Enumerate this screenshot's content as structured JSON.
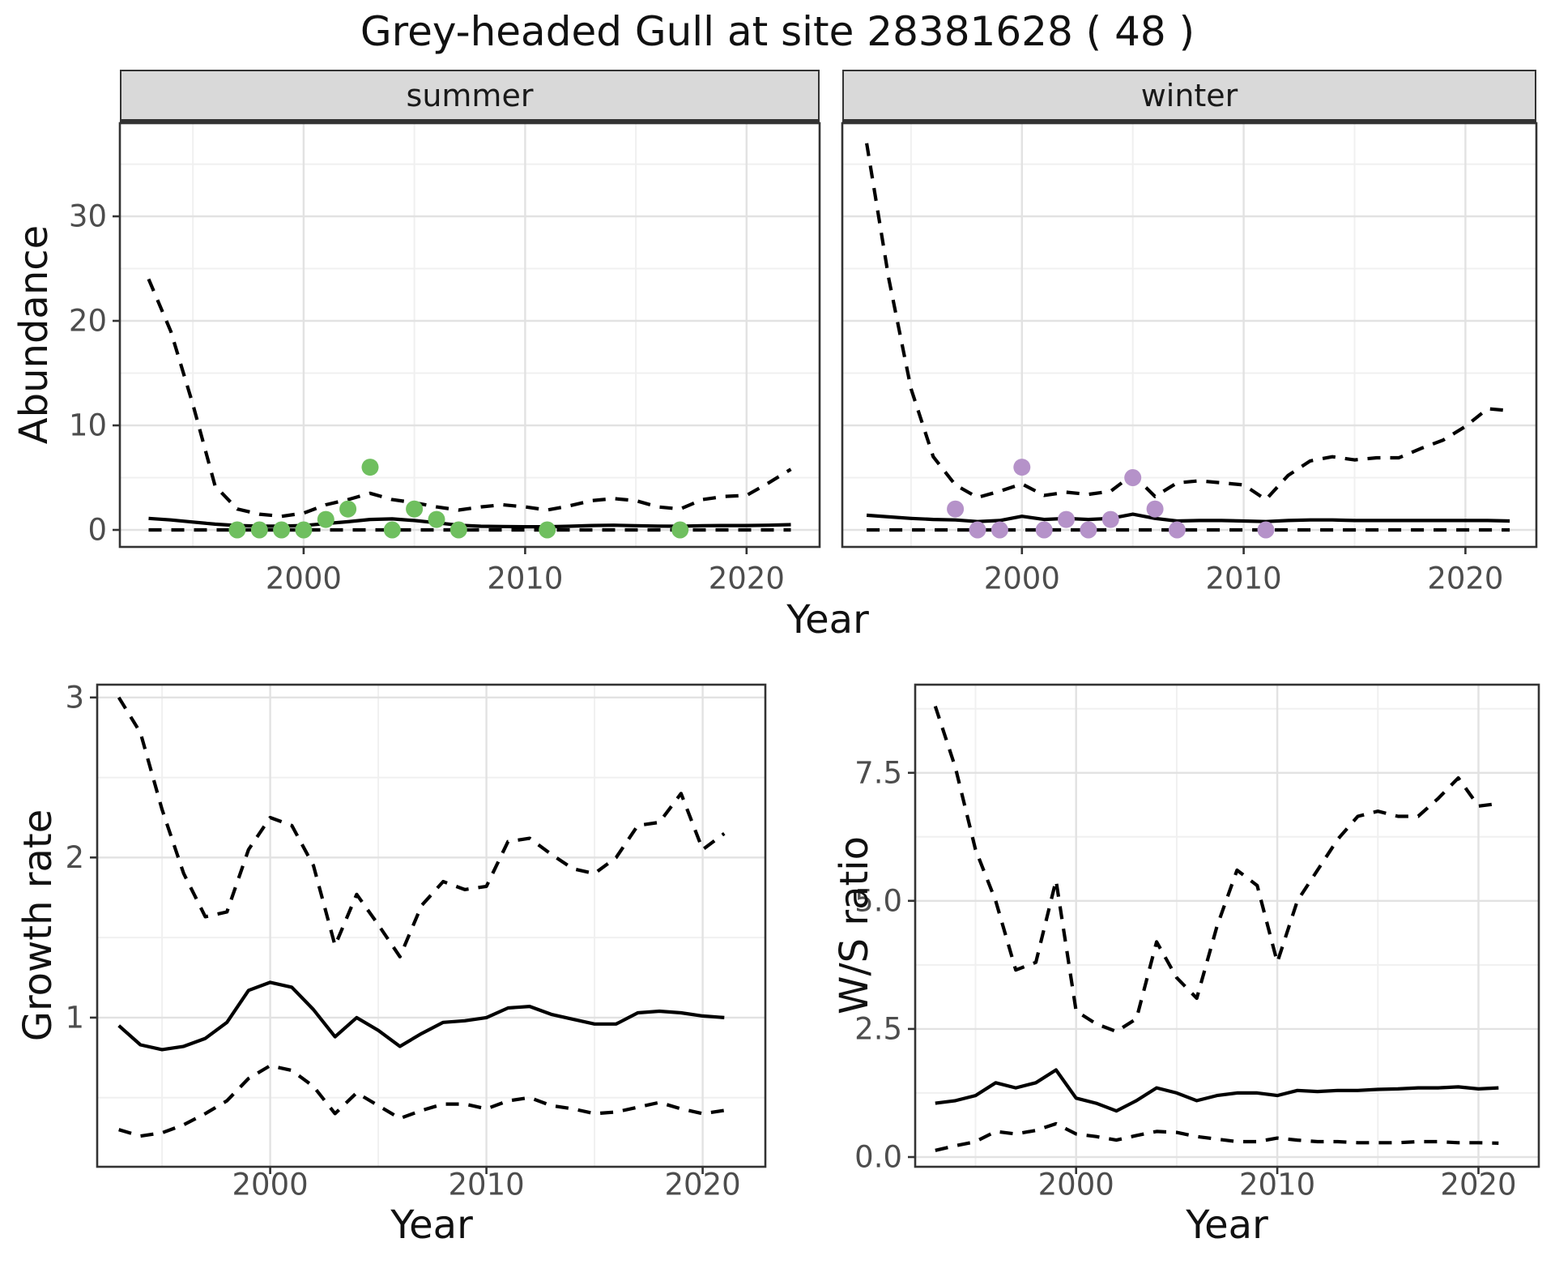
{
  "title": "Grey-headed Gull at site 28381628 ( 48 )",
  "facets": [
    {
      "label": "summer"
    },
    {
      "label": "winter"
    }
  ],
  "labels": {
    "x_top": "Year",
    "x_growth": "Year",
    "x_ws": "Year",
    "y_abundance": "Abundance",
    "y_growth": "Growth rate",
    "y_ws": "W/S ratio"
  },
  "colors": {
    "line": "#000000",
    "summer_point": "#6FBF5F",
    "winter_point": "#B592C9",
    "strip_bg": "#D9D9D9",
    "panel_border": "#333333",
    "grid_major": "#E2E2E2",
    "grid_minor": "#F0F0F0",
    "tick_text": "#4D4D4D"
  },
  "chart_data": [
    {
      "id": "abundance-summer",
      "type": "line",
      "title": "summer",
      "xlabel": "Year",
      "ylabel": "Abundance",
      "xlim": [
        1991.7,
        2023.3
      ],
      "ylim": [
        -1.63,
        38.92
      ],
      "xticks": [
        2000,
        2010,
        2020
      ],
      "xtick_labels": [
        "2000",
        "2010",
        "2020"
      ],
      "xminor": [
        1995,
        2005,
        2015
      ],
      "yticks": [
        0,
        10,
        20,
        30
      ],
      "ytick_labels": [
        "0",
        "10",
        "20",
        "30"
      ],
      "yminor": [
        5,
        15,
        25,
        35
      ],
      "x": [
        1993,
        1994,
        1995,
        1996,
        1997,
        1998,
        1999,
        2000,
        2001,
        2002,
        2003,
        2004,
        2005,
        2006,
        2007,
        2008,
        2009,
        2010,
        2011,
        2012,
        2013,
        2014,
        2015,
        2016,
        2017,
        2018,
        2019,
        2020,
        2021,
        2022
      ],
      "series": [
        {
          "name": "mean",
          "style": "solid",
          "values": [
            1.1,
            0.95,
            0.75,
            0.55,
            0.42,
            0.36,
            0.36,
            0.42,
            0.6,
            0.78,
            1.0,
            1.05,
            0.9,
            0.68,
            0.45,
            0.35,
            0.32,
            0.3,
            0.3,
            0.35,
            0.42,
            0.45,
            0.4,
            0.36,
            0.35,
            0.4,
            0.42,
            0.42,
            0.45,
            0.5
          ]
        },
        {
          "name": "upper_ci",
          "style": "dashed",
          "values": [
            24,
            19,
            12,
            4.2,
            2.0,
            1.5,
            1.3,
            1.6,
            2.4,
            2.9,
            3.5,
            2.9,
            2.6,
            2.2,
            1.9,
            2.2,
            2.4,
            2.2,
            1.9,
            2.3,
            2.8,
            3.0,
            2.8,
            2.2,
            2.0,
            2.9,
            3.2,
            3.3,
            4.5,
            5.8
          ]
        },
        {
          "name": "lower_ci",
          "style": "dashed",
          "values": [
            0,
            0,
            0,
            0,
            0,
            0,
            0,
            0,
            0,
            0,
            0,
            0,
            0,
            0,
            0,
            0,
            0,
            0,
            0,
            0,
            0,
            0,
            0,
            0,
            0,
            0,
            0,
            0,
            0,
            0
          ]
        }
      ],
      "points": {
        "name": "observed",
        "color": "#6FBF5F",
        "x": [
          1997,
          1998,
          1999,
          2000,
          2001,
          2002,
          2003,
          2004,
          2005,
          2006,
          2007,
          2011,
          2017
        ],
        "y": [
          0,
          0,
          0,
          0,
          1,
          2,
          6,
          0,
          2,
          1,
          0,
          0,
          0
        ]
      }
    },
    {
      "id": "abundance-winter",
      "type": "line",
      "title": "winter",
      "xlabel": "Year",
      "ylabel": "Abundance",
      "xlim": [
        1991.9,
        2023.2
      ],
      "ylim": [
        -1.63,
        38.92
      ],
      "xticks": [
        2000,
        2010,
        2020
      ],
      "xtick_labels": [
        "2000",
        "2010",
        "2020"
      ],
      "xminor": [
        1995,
        2005,
        2015
      ],
      "yticks": [
        0,
        10,
        20,
        30
      ],
      "ytick_labels": [
        "0",
        "10",
        "20",
        "30"
      ],
      "yminor": [
        5,
        15,
        25,
        35
      ],
      "x": [
        1993,
        1994,
        1995,
        1996,
        1997,
        1998,
        1999,
        2000,
        2001,
        2002,
        2003,
        2004,
        2005,
        2006,
        2007,
        2008,
        2009,
        2010,
        2011,
        2012,
        2013,
        2014,
        2015,
        2016,
        2017,
        2018,
        2019,
        2020,
        2021,
        2022
      ],
      "series": [
        {
          "name": "mean",
          "style": "solid",
          "values": [
            1.4,
            1.25,
            1.1,
            1.0,
            0.95,
            0.8,
            0.9,
            1.3,
            1.0,
            1.1,
            1.0,
            1.1,
            1.5,
            1.1,
            0.85,
            0.9,
            0.9,
            0.85,
            0.8,
            0.9,
            0.95,
            0.95,
            0.9,
            0.9,
            0.9,
            0.9,
            0.9,
            0.9,
            0.9,
            0.85
          ]
        },
        {
          "name": "upper_ci",
          "style": "dashed",
          "values": [
            37,
            24,
            13.5,
            7,
            4.3,
            3.1,
            3.7,
            4.4,
            3.3,
            3.6,
            3.4,
            3.7,
            5.3,
            3.2,
            4.5,
            4.7,
            4.5,
            4.3,
            2.9,
            5.2,
            6.6,
            7.0,
            6.7,
            6.9,
            6.9,
            7.8,
            8.6,
            9.9,
            11.6,
            11.4
          ]
        },
        {
          "name": "lower_ci",
          "style": "dashed",
          "values": [
            0,
            0,
            0,
            0,
            0,
            0,
            0,
            0,
            0,
            0,
            0,
            0,
            0,
            0,
            0,
            0,
            0,
            0,
            0,
            0,
            0,
            0,
            0,
            0,
            0,
            0,
            0,
            0,
            0,
            0
          ]
        }
      ],
      "points": {
        "name": "observed",
        "color": "#B592C9",
        "x": [
          1997,
          1998,
          1999,
          2000,
          2001,
          2002,
          2003,
          2004,
          2005,
          2006,
          2007,
          2011
        ],
        "y": [
          2,
          0,
          0,
          6,
          0,
          1,
          0,
          1,
          5,
          2,
          0,
          0
        ]
      }
    },
    {
      "id": "growth-rate",
      "type": "line",
      "title": "",
      "xlabel": "Year",
      "ylabel": "Growth rate",
      "xlim": [
        1992.0,
        2022.9
      ],
      "ylim": [
        0.068,
        3.08
      ],
      "xticks": [
        2000,
        2010,
        2020
      ],
      "xtick_labels": [
        "2000",
        "2010",
        "2020"
      ],
      "xminor": [
        1995,
        2005,
        2015
      ],
      "yticks": [
        1,
        2,
        3
      ],
      "ytick_labels": [
        "1",
        "2",
        "3"
      ],
      "yminor": [
        0.5,
        1.5,
        2.5
      ],
      "x": [
        1993,
        1994,
        1995,
        1996,
        1997,
        1998,
        1999,
        2000,
        2001,
        2002,
        2003,
        2004,
        2005,
        2006,
        2007,
        2008,
        2009,
        2010,
        2011,
        2012,
        2013,
        2014,
        2015,
        2016,
        2017,
        2018,
        2019,
        2020,
        2021
      ],
      "series": [
        {
          "name": "mean",
          "style": "solid",
          "values": [
            0.95,
            0.83,
            0.8,
            0.82,
            0.87,
            0.97,
            1.17,
            1.22,
            1.19,
            1.05,
            0.88,
            1.0,
            0.92,
            0.82,
            0.9,
            0.97,
            0.98,
            1.0,
            1.06,
            1.07,
            1.02,
            0.99,
            0.96,
            0.96,
            1.03,
            1.04,
            1.03,
            1.01,
            1.0
          ]
        },
        {
          "name": "upper_ci",
          "style": "dashed",
          "values": [
            3.0,
            2.78,
            2.3,
            1.9,
            1.63,
            1.66,
            2.05,
            2.25,
            2.2,
            1.95,
            1.45,
            1.77,
            1.58,
            1.38,
            1.7,
            1.85,
            1.8,
            1.82,
            2.1,
            2.12,
            2.02,
            1.93,
            1.9,
            2.0,
            2.2,
            2.22,
            2.4,
            2.05,
            2.15
          ]
        },
        {
          "name": "lower_ci",
          "style": "dashed",
          "values": [
            0.3,
            0.26,
            0.28,
            0.33,
            0.4,
            0.48,
            0.62,
            0.7,
            0.67,
            0.57,
            0.4,
            0.53,
            0.45,
            0.37,
            0.42,
            0.46,
            0.46,
            0.43,
            0.48,
            0.5,
            0.45,
            0.43,
            0.4,
            0.41,
            0.44,
            0.47,
            0.43,
            0.4,
            0.42
          ]
        }
      ]
    },
    {
      "id": "ws-ratio",
      "type": "line",
      "title": "",
      "xlabel": "Year",
      "ylabel": "W/S ratio",
      "xlim": [
        1992.0,
        2023.0
      ],
      "ylim": [
        -0.19,
        9.22
      ],
      "xticks": [
        2000,
        2010,
        2020
      ],
      "xtick_labels": [
        "2000",
        "2010",
        "2020"
      ],
      "xminor": [
        1995,
        2005,
        2015
      ],
      "yticks": [
        0,
        2.5,
        5,
        7.5
      ],
      "ytick_labels": [
        "0.0",
        "2.5",
        "5.0",
        "7.5"
      ],
      "yminor": [
        1.25,
        3.75,
        6.25,
        8.75
      ],
      "x": [
        1993,
        1994,
        1995,
        1996,
        1997,
        1998,
        1999,
        2000,
        2001,
        2002,
        2003,
        2004,
        2005,
        2006,
        2007,
        2008,
        2009,
        2010,
        2011,
        2012,
        2013,
        2014,
        2015,
        2016,
        2017,
        2018,
        2019,
        2020,
        2021
      ],
      "series": [
        {
          "name": "mean",
          "style": "solid",
          "values": [
            1.05,
            1.1,
            1.2,
            1.45,
            1.35,
            1.45,
            1.7,
            1.15,
            1.05,
            0.9,
            1.1,
            1.35,
            1.25,
            1.1,
            1.2,
            1.25,
            1.25,
            1.2,
            1.3,
            1.28,
            1.3,
            1.3,
            1.32,
            1.33,
            1.35,
            1.35,
            1.37,
            1.33,
            1.35
          ]
        },
        {
          "name": "upper_ci",
          "style": "dashed",
          "values": [
            8.8,
            7.6,
            6.0,
            5.0,
            3.65,
            3.8,
            5.4,
            2.85,
            2.6,
            2.45,
            2.7,
            4.2,
            3.5,
            3.1,
            4.5,
            5.6,
            5.3,
            3.8,
            5.0,
            5.6,
            6.2,
            6.65,
            6.75,
            6.65,
            6.65,
            7.0,
            7.4,
            6.85,
            6.9
          ]
        },
        {
          "name": "lower_ci",
          "style": "dashed",
          "values": [
            0.13,
            0.22,
            0.3,
            0.5,
            0.45,
            0.52,
            0.65,
            0.45,
            0.4,
            0.33,
            0.42,
            0.5,
            0.48,
            0.4,
            0.35,
            0.3,
            0.3,
            0.37,
            0.33,
            0.3,
            0.3,
            0.28,
            0.28,
            0.28,
            0.3,
            0.3,
            0.28,
            0.28,
            0.27
          ]
        }
      ]
    }
  ]
}
